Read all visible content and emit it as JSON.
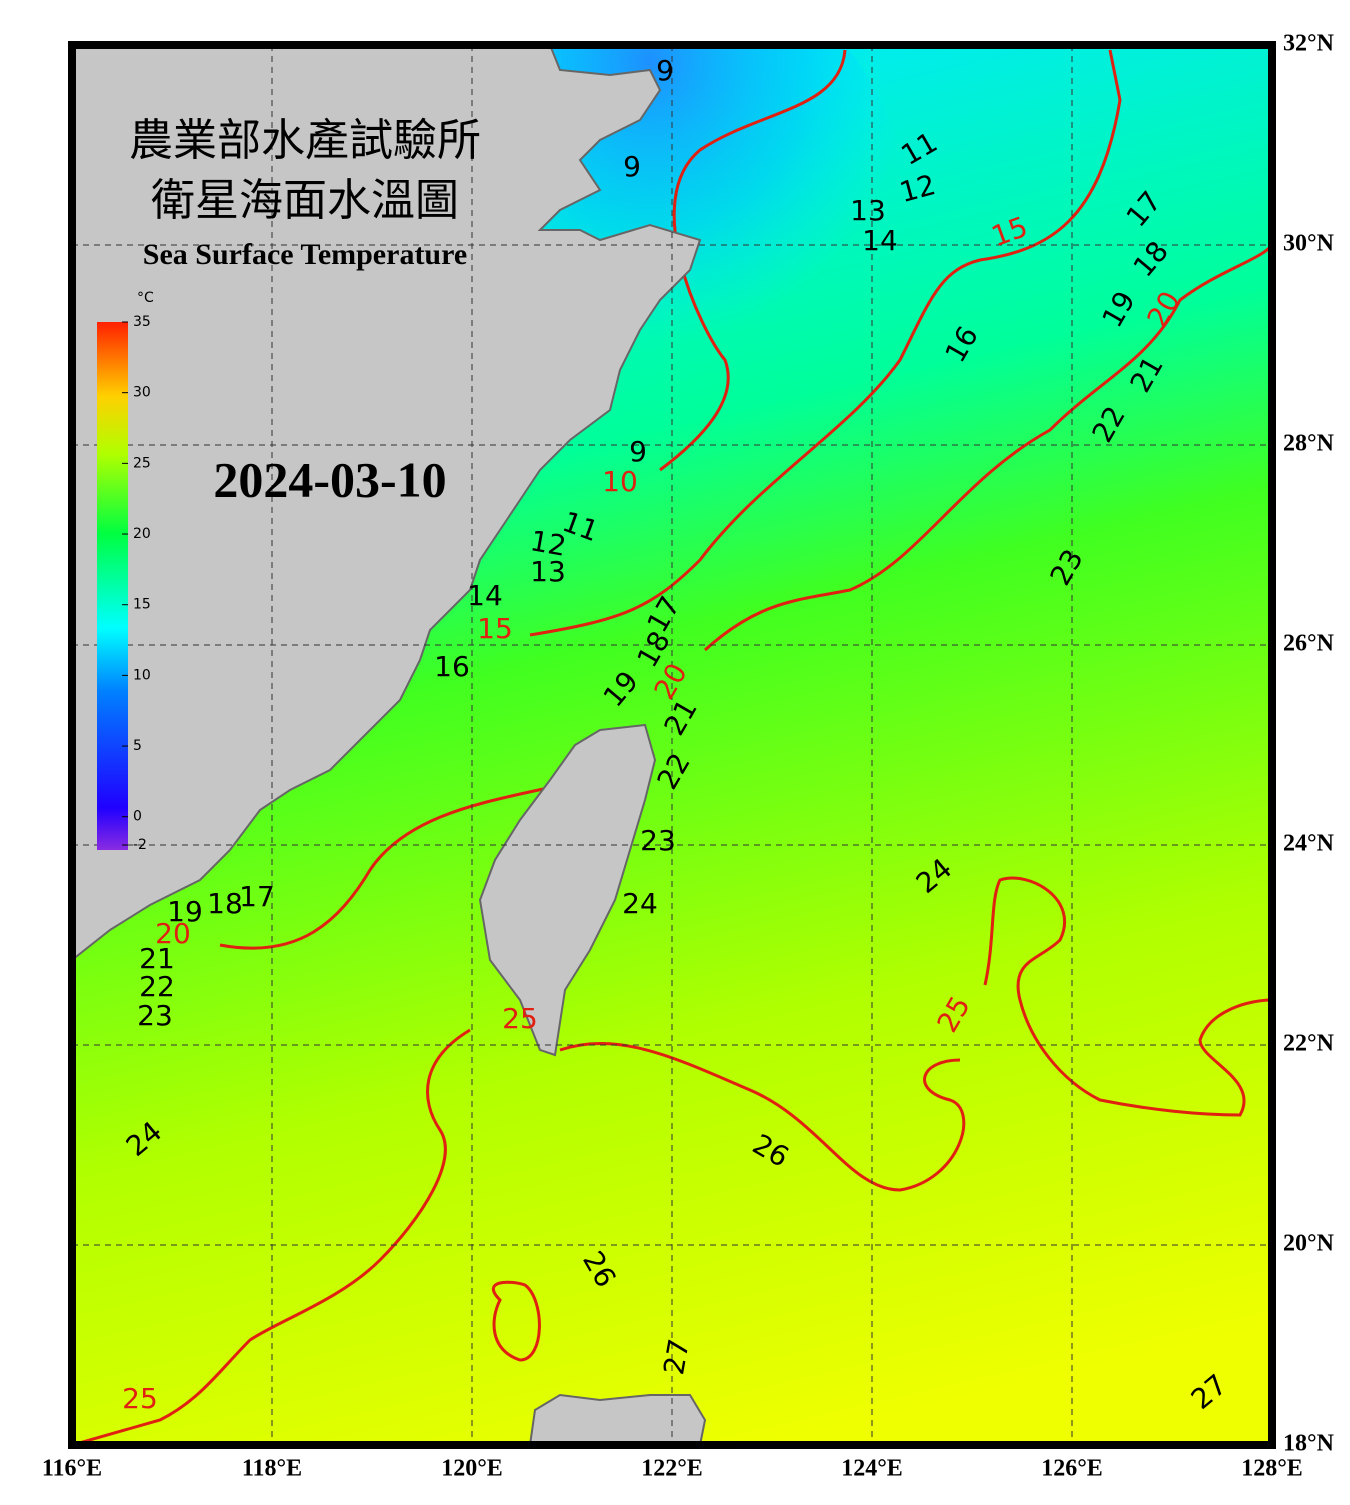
{
  "header": {
    "title_lines": [
      "農業部水產試驗所",
      "衛星海面水溫圖"
    ],
    "subtitle": "Sea Surface Temperature",
    "date": "2024-03-10"
  },
  "colorbar": {
    "unit": "°C",
    "range": [
      -2,
      35
    ],
    "ticks": [
      35,
      30,
      25,
      20,
      15,
      10,
      5,
      0,
      -2
    ]
  },
  "map": {
    "lonlim": [
      116,
      128
    ],
    "latlim": [
      18,
      32
    ],
    "lon_ticks": [
      {
        "value": 116,
        "label": "116°E"
      },
      {
        "value": 118,
        "label": "118°E"
      },
      {
        "value": 120,
        "label": "120°E"
      },
      {
        "value": 122,
        "label": "122°E"
      },
      {
        "value": 124,
        "label": "124°E"
      },
      {
        "value": 126,
        "label": "126°E"
      },
      {
        "value": 128,
        "label": "128°E"
      }
    ],
    "lat_ticks": [
      {
        "value": 32,
        "label": "32°N"
      },
      {
        "value": 30,
        "label": "30°N"
      },
      {
        "value": 28,
        "label": "28°N"
      },
      {
        "value": 26,
        "label": "26°N"
      },
      {
        "value": 24,
        "label": "24°N"
      },
      {
        "value": 22,
        "label": "22°N"
      },
      {
        "value": 20,
        "label": "20°N"
      },
      {
        "value": 18,
        "label": "18°N"
      }
    ],
    "contour_labels": [
      9,
      9,
      11,
      12,
      13,
      14,
      15,
      17,
      18,
      16,
      19,
      20,
      21,
      22,
      9,
      10,
      11,
      12,
      13,
      14,
      15,
      17,
      18,
      16,
      19,
      20,
      21,
      22,
      23,
      23,
      24,
      24,
      19,
      18,
      17,
      20,
      21,
      22,
      23,
      25,
      25,
      24,
      26,
      26,
      27,
      27,
      25
    ]
  }
}
